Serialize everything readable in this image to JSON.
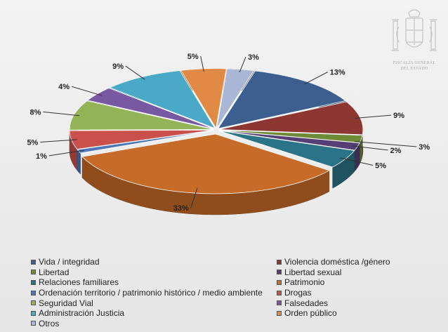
{
  "header": {
    "institution_line1": "FISCALÍA GENERAL",
    "institution_line2": "DEL ESTADO"
  },
  "chart_data": {
    "type": "pie",
    "style": "3d",
    "legend_position": "bottom",
    "slices": [
      {
        "name": "Otros",
        "value": 3,
        "label": "3%",
        "color": "#a9b7d4"
      },
      {
        "name": "Vida / integridad",
        "value": 13,
        "label": "13%",
        "color": "#3d5f8f"
      },
      {
        "name": "Violencia doméstica /género",
        "value": 9,
        "label": "9%",
        "color": "#8e3632"
      },
      {
        "name": "Libertad",
        "value": 2,
        "label": "",
        "color": "#6f8b37"
      },
      {
        "name": "Libertad sexual",
        "value": 2,
        "label": "2%",
        "color": "#553f74"
      },
      {
        "name": "Relaciones familiares",
        "value": 5,
        "label": "5%",
        "color": "#2b7386"
      },
      {
        "name": "Patrimonio",
        "value": 33,
        "label": "33%",
        "color": "#c66b28"
      },
      {
        "name": "Ordenación territorio / patrimonio histórico / medio ambiente",
        "value": 1,
        "label": "1%",
        "color": "#4e77b8"
      },
      {
        "name": "Drogas",
        "value": 5,
        "label": "5%",
        "color": "#c9504b"
      },
      {
        "name": "Seguridad Vial",
        "value": 8,
        "label": "8%",
        "color": "#94b357"
      },
      {
        "name": "Falsedades",
        "value": 4,
        "label": "4%",
        "color": "#7659a0"
      },
      {
        "name": "Administración Justicia",
        "value": 9,
        "label": "9%",
        "color": "#4aa9c6"
      },
      {
        "name": "Orden público",
        "value": 5,
        "label": "5%",
        "color": "#e08a46"
      }
    ],
    "extra_labels": [
      {
        "label": "3%"
      }
    ]
  },
  "legend": [
    {
      "name": "Vida / integridad",
      "color": "#3d5f8f"
    },
    {
      "name": "Violencia doméstica /género",
      "color": "#8e3632"
    },
    {
      "name": "Libertad",
      "color": "#6f8b37"
    },
    {
      "name": "Libertad sexual",
      "color": "#553f74"
    },
    {
      "name": "Relaciones familiares",
      "color": "#2b7386"
    },
    {
      "name": "Patrimonio",
      "color": "#c66b28"
    },
    {
      "name": "Ordenación territorio / patrimonio histórico / medio ambiente",
      "color": "#4e77b8"
    },
    {
      "name": "Drogas",
      "color": "#c9504b"
    },
    {
      "name": "Seguridad Vial",
      "color": "#94b357"
    },
    {
      "name": "Falsedades",
      "color": "#7659a0"
    },
    {
      "name": "Administración Justicia",
      "color": "#4aa9c6"
    },
    {
      "name": "Orden público",
      "color": "#e08a46"
    },
    {
      "name": "Otros",
      "color": "#a9b7d4"
    }
  ]
}
